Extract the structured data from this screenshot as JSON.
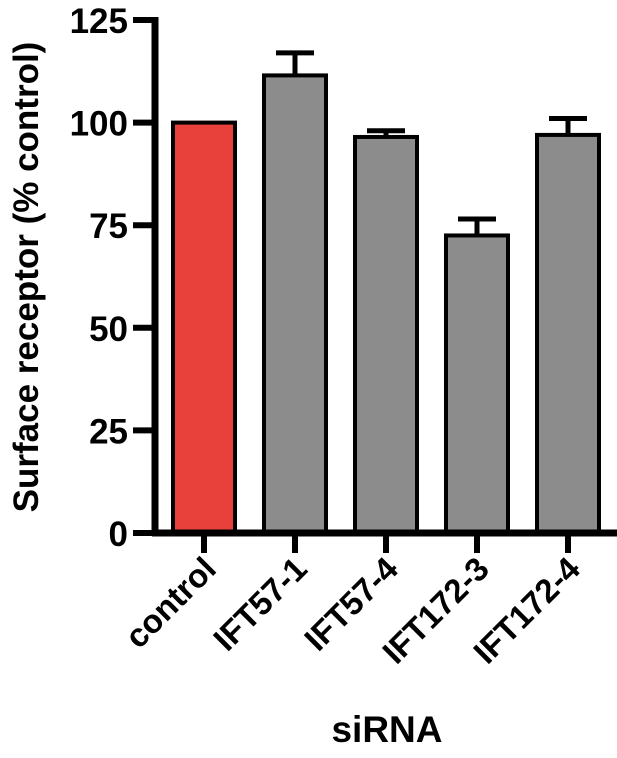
{
  "chart_data": {
    "type": "bar",
    "xlabel": "siRNA",
    "ylabel": "Surface receptor (% control)",
    "categories": [
      "control",
      "IFT57-1",
      "IFT57-4",
      "IFT172-3",
      "IFT172-4"
    ],
    "values": [
      100,
      111.5,
      96.5,
      72.5,
      97
    ],
    "errors": [
      0,
      5.5,
      1.5,
      4,
      4
    ],
    "bar_colors": [
      "#e8403a",
      "#8c8c8c",
      "#8c8c8c",
      "#8c8c8c",
      "#8c8c8c"
    ],
    "ylim": [
      0,
      125
    ],
    "yticks": [
      0,
      25,
      50,
      75,
      100,
      125
    ],
    "ytick_labels": [
      "0",
      "25",
      "50",
      "75",
      "100",
      "125"
    ],
    "grid": false,
    "legend": "none"
  }
}
